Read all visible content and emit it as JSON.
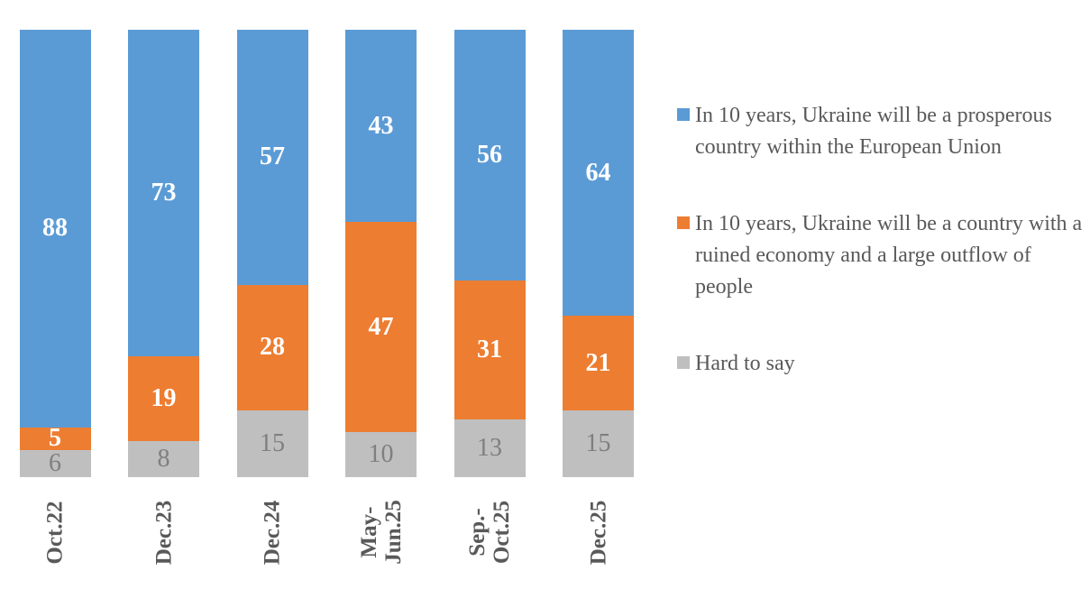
{
  "chart_data": {
    "type": "bar",
    "subtype": "stacked-100-percent-column",
    "title": "",
    "xlabel": "",
    "ylabel": "",
    "grid": false,
    "axes_visible": false,
    "legend_position": "right",
    "categories": [
      "Oct.22",
      "Dec.23",
      "Dec.24",
      "May-\nJun.25",
      "Sep.-\nOct.25",
      "Dec.25"
    ],
    "series": [
      {
        "name": "In 10 years, Ukraine will be a prosperous country within the European Union",
        "color": "#5B9BD5",
        "label_color": "#ffffff",
        "label_bold": true,
        "values": [
          88,
          73,
          57,
          43,
          56,
          64
        ]
      },
      {
        "name": "In 10 years, Ukraine will be a country with a ruined economy and a large outflow of people",
        "color": "#ED7D31",
        "label_color": "#ffffff",
        "label_bold": true,
        "values": [
          5,
          19,
          28,
          47,
          31,
          21
        ]
      },
      {
        "name": "Hard to say",
        "color": "#BFBFBF",
        "label_color": "#7F7F7F",
        "label_bold": false,
        "values": [
          6,
          8,
          15,
          10,
          13,
          15
        ]
      }
    ],
    "category_label_color": "#595959",
    "background_color": "#ffffff"
  }
}
